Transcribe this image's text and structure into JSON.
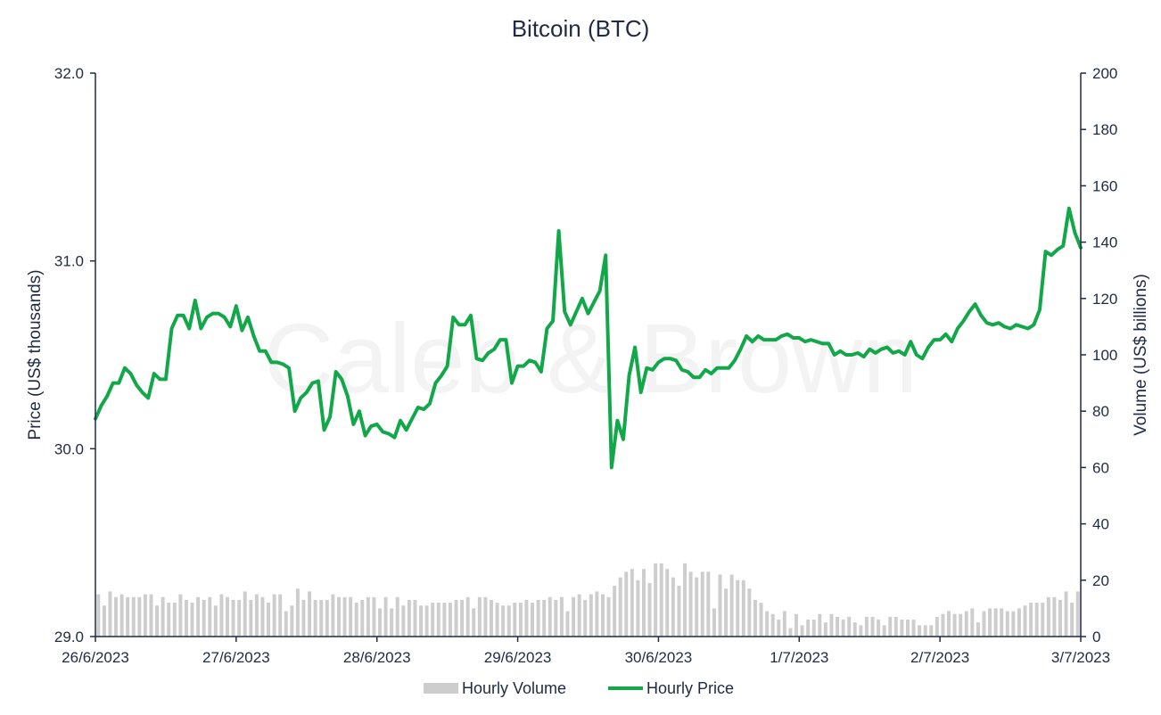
{
  "chart_data": {
    "type": "bar+line",
    "title": "Bitcoin (BTC)",
    "watermark": "Caleb & Brown",
    "y_left_label": "Price (US$ thousands)",
    "y_right_label": "Volume (US$ billions)",
    "y_left_range": [
      29.0,
      32.0
    ],
    "y_left_ticks": [
      "29.0",
      "30.0",
      "31.0",
      "32.0"
    ],
    "y_right_range": [
      0,
      200
    ],
    "y_right_ticks": [
      "0",
      "20",
      "40",
      "60",
      "80",
      "100",
      "120",
      "140",
      "160",
      "180",
      "200"
    ],
    "x_range": [
      0,
      7
    ],
    "x_ticks": [
      {
        "pos": 0,
        "label": "26/6/2023"
      },
      {
        "pos": 1,
        "label": "27/6/2023"
      },
      {
        "pos": 2,
        "label": "28/6/2023"
      },
      {
        "pos": 3,
        "label": "29/6/2023"
      },
      {
        "pos": 4,
        "label": "30/6/2023"
      },
      {
        "pos": 5,
        "label": "1/7/2023"
      },
      {
        "pos": 6,
        "label": "2/7/2023"
      },
      {
        "pos": 7,
        "label": "3/7/2023"
      }
    ],
    "series": [
      {
        "name": "Hourly Volume",
        "kind": "bar",
        "axis": "right",
        "color": "#cdcdcd",
        "values": [
          15,
          11,
          16,
          14,
          15,
          14,
          14,
          14,
          15,
          15,
          11,
          14,
          12,
          12,
          15,
          13,
          12,
          14,
          13,
          14,
          11,
          15,
          14,
          13,
          13,
          16,
          13,
          15,
          14,
          12,
          15,
          15,
          9,
          11,
          17,
          13,
          16,
          13,
          13,
          13,
          15,
          14,
          14,
          14,
          12,
          13,
          14,
          14,
          10,
          14,
          10,
          14,
          11,
          13,
          13,
          11,
          11,
          12,
          12,
          12,
          12,
          13,
          13,
          14,
          10,
          14,
          14,
          13,
          12,
          11,
          11,
          12,
          12,
          13,
          12,
          13,
          13,
          14,
          13,
          14,
          9,
          14,
          15,
          13,
          15,
          16,
          15,
          14,
          18,
          21,
          23,
          24,
          20,
          24,
          19,
          26,
          26,
          24,
          21,
          18,
          26,
          23,
          21,
          23,
          23,
          10,
          22,
          17,
          22,
          20,
          20,
          17,
          13,
          12,
          9,
          8,
          6,
          9,
          3,
          8,
          4,
          6,
          6,
          8,
          5,
          8,
          7,
          6,
          7,
          5,
          4,
          7,
          7,
          6,
          4,
          7,
          7,
          6,
          6,
          6,
          4,
          4,
          4,
          7,
          8,
          9,
          8,
          8,
          9,
          10,
          5,
          9,
          10,
          10,
          10,
          9,
          9,
          10,
          11,
          12,
          12,
          12,
          14,
          14,
          13,
          16,
          12,
          16
        ]
      },
      {
        "name": "Hourly Price",
        "kind": "line",
        "axis": "left",
        "color": "#12a84a",
        "values": [
          30.16,
          30.23,
          30.28,
          30.35,
          30.35,
          30.43,
          30.4,
          30.34,
          30.3,
          30.27,
          30.4,
          30.37,
          30.37,
          30.64,
          30.71,
          30.71,
          30.64,
          30.79,
          30.64,
          30.7,
          30.72,
          30.72,
          30.7,
          30.65,
          30.76,
          30.63,
          30.7,
          30.6,
          30.52,
          30.52,
          30.46,
          30.46,
          30.45,
          30.43,
          30.2,
          30.27,
          30.3,
          30.35,
          30.36,
          30.1,
          30.17,
          30.41,
          30.37,
          30.28,
          30.13,
          30.2,
          30.07,
          30.12,
          30.13,
          30.09,
          30.08,
          30.06,
          30.15,
          30.1,
          30.16,
          30.22,
          30.21,
          30.24,
          30.35,
          30.39,
          30.44,
          30.7,
          30.66,
          30.66,
          30.71,
          30.48,
          30.47,
          30.51,
          30.53,
          30.58,
          30.58,
          30.35,
          30.44,
          30.44,
          30.47,
          30.46,
          30.41,
          30.64,
          30.68,
          31.16,
          30.73,
          30.66,
          30.73,
          30.8,
          30.72,
          30.78,
          30.84,
          31.03,
          29.9,
          30.15,
          30.05,
          30.39,
          30.54,
          30.3,
          30.43,
          30.42,
          30.46,
          30.48,
          30.48,
          30.47,
          30.42,
          30.41,
          30.38,
          30.38,
          30.42,
          30.4,
          30.43,
          30.43,
          30.43,
          30.47,
          30.53,
          30.6,
          30.57,
          30.6,
          30.58,
          30.58,
          30.58,
          30.6,
          30.61,
          30.59,
          30.59,
          30.57,
          30.58,
          30.57,
          30.56,
          30.56,
          30.5,
          30.52,
          30.5,
          30.5,
          30.51,
          30.49,
          30.53,
          30.51,
          30.53,
          30.54,
          30.51,
          30.52,
          30.5,
          30.57,
          30.5,
          30.48,
          30.54,
          30.58,
          30.58,
          30.61,
          30.57,
          30.64,
          30.68,
          30.73,
          30.77,
          30.71,
          30.67,
          30.66,
          30.67,
          30.65,
          30.64,
          30.66,
          30.65,
          30.64,
          30.66,
          30.74,
          31.05,
          31.03,
          31.06,
          31.08,
          31.28,
          31.15,
          31.07
        ]
      }
    ],
    "legend": {
      "position": "bottom-center",
      "items": [
        "Hourly Volume",
        "Hourly Price"
      ]
    },
    "grid": false
  }
}
